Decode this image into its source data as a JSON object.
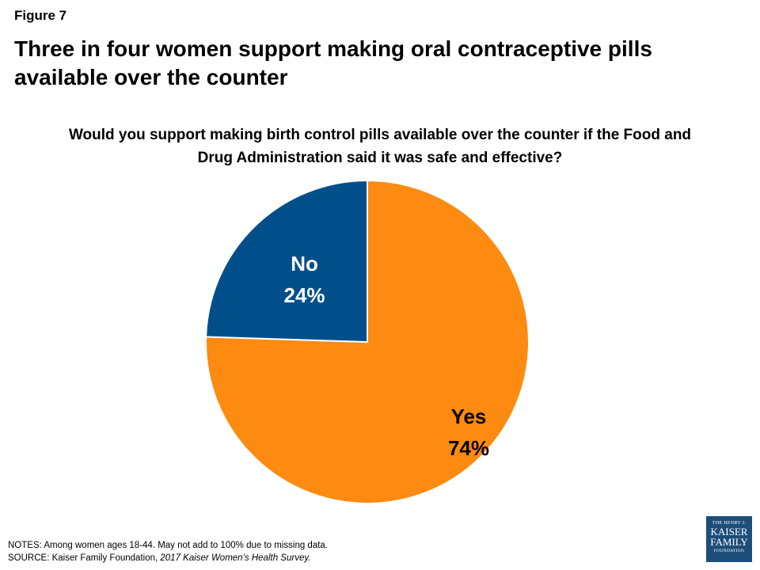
{
  "figure_label": "Figure 7",
  "title": "Three in four women support making oral contraceptive pills available over the counter",
  "chart_data": {
    "type": "pie",
    "title": "Would you support making birth control pills available over the counter if the Food and Drug Administration said it was safe and effective?",
    "slices": [
      {
        "label": "Yes",
        "value": 74,
        "value_label": "74%",
        "color": "#fd8a11",
        "text_color": "#000000"
      },
      {
        "label": "No",
        "value": 24,
        "value_label": "24%",
        "color": "#004f8b",
        "text_color": "#ffffff"
      }
    ]
  },
  "notes": {
    "line1": "NOTES:  Among women  ages 18-44.  May not add to 100% due to missing data.",
    "source_prefix": "SOURCE:  Kaiser Family Foundation, ",
    "source_italic": "2017 Kaiser Women’s Health Survey."
  },
  "logo": {
    "line1": "THE HENRY J.",
    "line2": "KAISER",
    "line3": "FAMILY",
    "line4": "FOUNDATION"
  }
}
